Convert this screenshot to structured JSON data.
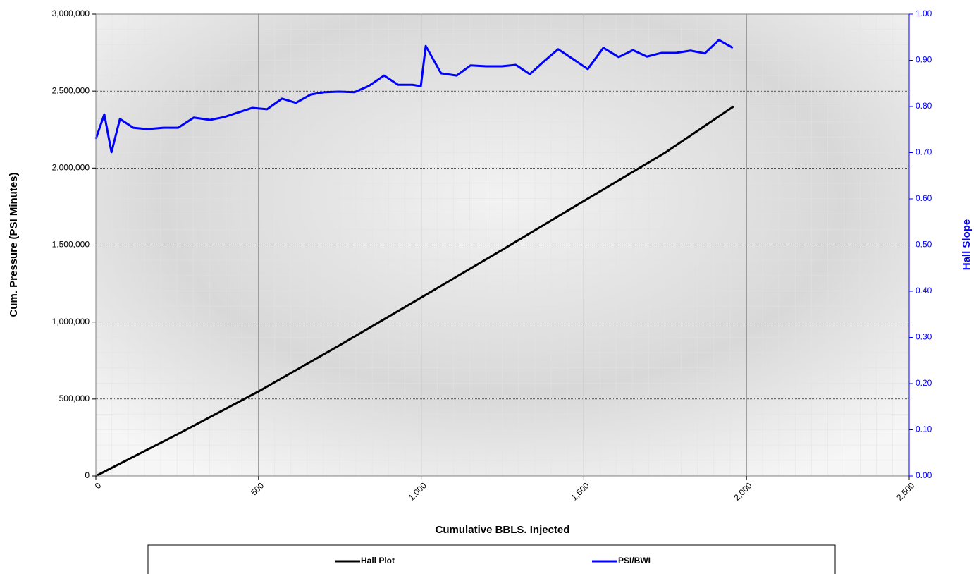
{
  "chart_data": {
    "type": "line",
    "x_label": "Cumulative BBLS. Injected",
    "y_label": "Cum. Pressure (PSI Minutes)",
    "y2_label": "Hall Slope",
    "xlim": [
      0,
      2500
    ],
    "xticks": [
      0,
      {
        "value": 500,
        "label": "500"
      },
      {
        "value": 1000,
        "label": "1,000"
      },
      {
        "value": 1500,
        "label": "1,500"
      },
      {
        "value": 2000,
        "label": "2,000"
      },
      {
        "value": 2500,
        "label": "2,500"
      }
    ],
    "ylim": [
      0,
      3000000
    ],
    "yticks": [
      0,
      {
        "value": 500000,
        "label": "500,000"
      },
      {
        "value": 1000000,
        "label": "1,000,000"
      },
      {
        "value": 1500000,
        "label": "1,500,000"
      },
      {
        "value": 2000000,
        "label": "2,000,000"
      },
      {
        "value": 2500000,
        "label": "2,500,000"
      },
      {
        "value": 3000000,
        "label": "3,000,000"
      }
    ],
    "y2lim": [
      0,
      1
    ],
    "y2ticks": [
      {
        "value": 0,
        "label": "0.00"
      },
      {
        "value": 0.1,
        "label": "0.10"
      },
      {
        "value": 0.2,
        "label": "0.20"
      },
      {
        "value": 0.3,
        "label": "0.30"
      },
      {
        "value": 0.4,
        "label": "0.40"
      },
      {
        "value": 0.5,
        "label": "0.50"
      },
      {
        "value": 0.6,
        "label": "0.60"
      },
      {
        "value": 0.7,
        "label": "0.70"
      },
      {
        "value": 0.8,
        "label": "0.80"
      },
      {
        "value": 0.9,
        "label": "0.90"
      },
      {
        "value": 1,
        "label": "1.00"
      }
    ],
    "grid": true,
    "legend": "bottom",
    "series": [
      {
        "name": "Hall Plot",
        "color": "#000000",
        "x": [
          0,
          250,
          500,
          750,
          1000,
          1250,
          1500,
          1750,
          1960
        ],
        "values": [
          0,
          270000,
          549000,
          850000,
          1159000,
          1470000,
          1786000,
          2100000,
          2400000
        ]
      },
      {
        "name": "PSI/BWI",
        "color": "#0000ff",
        "axis": "y2",
        "x": [
          0,
          26,
          48,
          74,
          115,
          158,
          208,
          253,
          301,
          351,
          394,
          446,
          481,
          526,
          572,
          615,
          661,
          704,
          747,
          795,
          838,
          886,
          929,
          973,
          999,
          1014,
          1061,
          1109,
          1152,
          1200,
          1248,
          1291,
          1334,
          1378,
          1421,
          1464,
          1512,
          1560,
          1607,
          1651,
          1694,
          1738,
          1783,
          1828,
          1872,
          1915,
          1958
        ],
        "values": [
          0.73,
          0.783,
          0.701,
          0.773,
          0.754,
          0.751,
          0.754,
          0.754,
          0.776,
          0.771,
          0.777,
          0.789,
          0.797,
          0.794,
          0.817,
          0.808,
          0.826,
          0.831,
          0.832,
          0.831,
          0.844,
          0.867,
          0.847,
          0.847,
          0.844,
          0.931,
          0.872,
          0.867,
          0.889,
          0.887,
          0.887,
          0.89,
          0.87,
          0.898,
          0.924,
          0.904,
          0.881,
          0.927,
          0.907,
          0.922,
          0.908,
          0.916,
          0.916,
          0.921,
          0.915,
          0.944,
          0.927
        ]
      }
    ]
  }
}
